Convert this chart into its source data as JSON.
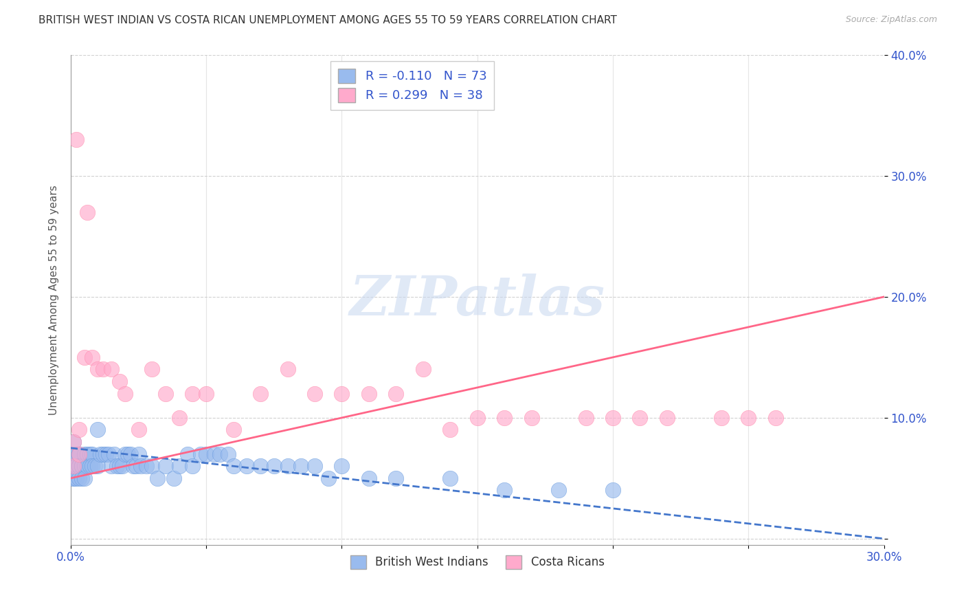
{
  "title": "BRITISH WEST INDIAN VS COSTA RICAN UNEMPLOYMENT AMONG AGES 55 TO 59 YEARS CORRELATION CHART",
  "source": "Source: ZipAtlas.com",
  "ylabel": "Unemployment Among Ages 55 to 59 years",
  "xlim": [
    0.0,
    0.3
  ],
  "ylim": [
    -0.005,
    0.4
  ],
  "xticks": [
    0.0,
    0.05,
    0.1,
    0.15,
    0.2,
    0.25,
    0.3
  ],
  "yticks": [
    0.0,
    0.1,
    0.2,
    0.3,
    0.4
  ],
  "xtick_labels_show": [
    "0.0%",
    "",
    "",
    "",
    "",
    "",
    "30.0%"
  ],
  "ytick_labels": [
    "",
    "10.0%",
    "20.0%",
    "30.0%",
    "40.0%"
  ],
  "group1_color": "#99bbee",
  "group2_color": "#ffaacc",
  "group1_edge": "#6699dd",
  "group2_edge": "#ff88aa",
  "group1_label": "British West Indians",
  "group2_label": "Costa Ricans",
  "group1_R": "-0.110",
  "group1_N": "73",
  "group2_R": "0.299",
  "group2_N": "38",
  "line1_color": "#4477cc",
  "line2_color": "#ff6688",
  "legend_text_color": "#3355cc",
  "watermark_color": "#c8d8f0",
  "title_fontsize": 11,
  "axis_label_fontsize": 11,
  "tick_fontsize": 12,
  "group1_x": [
    0.001,
    0.001,
    0.001,
    0.001,
    0.001,
    0.002,
    0.002,
    0.002,
    0.002,
    0.003,
    0.003,
    0.003,
    0.003,
    0.003,
    0.004,
    0.004,
    0.004,
    0.005,
    0.005,
    0.005,
    0.006,
    0.006,
    0.007,
    0.007,
    0.008,
    0.008,
    0.009,
    0.01,
    0.01,
    0.011,
    0.012,
    0.013,
    0.014,
    0.015,
    0.016,
    0.017,
    0.018,
    0.019,
    0.02,
    0.021,
    0.022,
    0.023,
    0.024,
    0.025,
    0.026,
    0.028,
    0.03,
    0.032,
    0.035,
    0.038,
    0.04,
    0.043,
    0.045,
    0.048,
    0.05,
    0.053,
    0.055,
    0.058,
    0.06,
    0.065,
    0.07,
    0.075,
    0.08,
    0.085,
    0.09,
    0.095,
    0.1,
    0.11,
    0.12,
    0.14,
    0.16,
    0.18,
    0.2
  ],
  "group1_y": [
    0.08,
    0.07,
    0.06,
    0.05,
    0.05,
    0.07,
    0.06,
    0.06,
    0.05,
    0.07,
    0.07,
    0.06,
    0.06,
    0.05,
    0.06,
    0.06,
    0.05,
    0.07,
    0.06,
    0.05,
    0.07,
    0.06,
    0.07,
    0.06,
    0.07,
    0.06,
    0.06,
    0.09,
    0.06,
    0.07,
    0.07,
    0.07,
    0.07,
    0.06,
    0.07,
    0.06,
    0.06,
    0.06,
    0.07,
    0.07,
    0.07,
    0.06,
    0.06,
    0.07,
    0.06,
    0.06,
    0.06,
    0.05,
    0.06,
    0.05,
    0.06,
    0.07,
    0.06,
    0.07,
    0.07,
    0.07,
    0.07,
    0.07,
    0.06,
    0.06,
    0.06,
    0.06,
    0.06,
    0.06,
    0.06,
    0.05,
    0.06,
    0.05,
    0.05,
    0.05,
    0.04,
    0.04,
    0.04
  ],
  "group2_x": [
    0.001,
    0.001,
    0.002,
    0.003,
    0.003,
    0.005,
    0.006,
    0.008,
    0.01,
    0.012,
    0.015,
    0.018,
    0.02,
    0.025,
    0.03,
    0.035,
    0.04,
    0.045,
    0.05,
    0.06,
    0.07,
    0.08,
    0.09,
    0.1,
    0.11,
    0.12,
    0.13,
    0.14,
    0.15,
    0.16,
    0.17,
    0.19,
    0.2,
    0.21,
    0.22,
    0.24,
    0.25,
    0.26
  ],
  "group2_y": [
    0.08,
    0.06,
    0.33,
    0.09,
    0.07,
    0.15,
    0.27,
    0.15,
    0.14,
    0.14,
    0.14,
    0.13,
    0.12,
    0.09,
    0.14,
    0.12,
    0.1,
    0.12,
    0.12,
    0.09,
    0.12,
    0.14,
    0.12,
    0.12,
    0.12,
    0.12,
    0.14,
    0.09,
    0.1,
    0.1,
    0.1,
    0.1,
    0.1,
    0.1,
    0.1,
    0.1,
    0.1,
    0.1
  ],
  "trendline1_x": [
    0.0,
    0.3
  ],
  "trendline1_y": [
    0.075,
    0.0
  ],
  "trendline2_x": [
    0.0,
    0.3
  ],
  "trendline2_y": [
    0.05,
    0.2
  ]
}
